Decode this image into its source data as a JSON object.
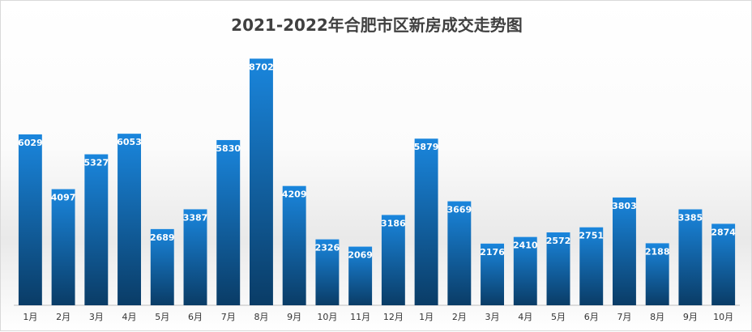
{
  "chart_data": {
    "type": "bar",
    "title": "2021-2022年合肥市区新房成交走势图",
    "categories": [
      "1月",
      "2月",
      "3月",
      "4月",
      "5月",
      "6月",
      "7月",
      "8月",
      "9月",
      "10月",
      "11月",
      "12月",
      "1月",
      "2月",
      "3月",
      "4月",
      "5月",
      "6月",
      "7月",
      "8月",
      "9月",
      "10月"
    ],
    "values": [
      6029,
      4097,
      5327,
      6053,
      2689,
      3387,
      5830,
      8702,
      4209,
      2326,
      2069,
      3186,
      5879,
      3669,
      2176,
      2410,
      2572,
      2751,
      3803,
      2188,
      3385,
      2874
    ],
    "ylim": [
      0,
      10000
    ],
    "grid": false,
    "legend": "none",
    "colors": {
      "bar_top": "#1a86dd",
      "bar_bottom": "#0a3c66",
      "label": "#ffffff"
    }
  }
}
